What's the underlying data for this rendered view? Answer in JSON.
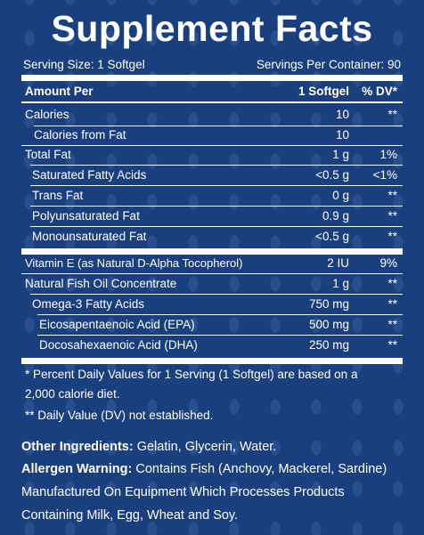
{
  "title": "Supplement Facts",
  "serving_size": "Serving Size: 1 Softgel",
  "servings_per_container": "Servings Per Container: 90",
  "header": {
    "amount_per": "Amount Per",
    "serving": "1 Softgel",
    "dv": "% DV*"
  },
  "rows": [
    {
      "name": "Calories",
      "amount": "10",
      "dv": "**"
    },
    {
      "name": "Calories from Fat",
      "amount": "10",
      "dv": ""
    },
    {
      "name": "Total Fat",
      "amount": "1 g",
      "dv": "1%"
    },
    {
      "name": "Saturated Fatty Acids",
      "amount": "<0.5 g",
      "dv": "<1%"
    },
    {
      "name": "Trans Fat",
      "amount": "0 g",
      "dv": "**"
    },
    {
      "name": "Polyunsaturated Fat",
      "amount": "0.9 g",
      "dv": "**"
    },
    {
      "name": "Monounsaturated Fat",
      "amount": "<0.5 g",
      "dv": "**"
    },
    {
      "name": "Vitamin E (as Natural D-Alpha Tocopherol)",
      "amount": "2 IU",
      "dv": "9%"
    },
    {
      "name": "Natural Fish Oil Concentrate",
      "amount": "1 g",
      "dv": "**"
    },
    {
      "name": "Omega-3 Fatty Acids",
      "amount": "750 mg",
      "dv": "**"
    },
    {
      "name": "Eicosapentaenoic Acid (EPA)",
      "amount": "500 mg",
      "dv": "**"
    },
    {
      "name": "Docosahexaenoic Acid (DHA)",
      "amount": "250 mg",
      "dv": "**"
    }
  ],
  "footnote_1a": "* Percent Daily Values for 1 Serving (1 Softgel) are based on a",
  "footnote_1b": "2,000 calorie diet.",
  "footnote_2": "** Daily Value (DV) not established.",
  "other_ingredients_label": "Other Ingredients:",
  "other_ingredients": "Gelatin, Glycerin, Water.",
  "allergen_label": "Allergen Warning:",
  "allergen_text": "Contains Fish (Anchovy, Mackerel, Sardine)",
  "allergen_line2": "Manufactured On Equipment Which Processes Products",
  "allergen_line3": "Containing Milk, Egg, Wheat and Soy."
}
